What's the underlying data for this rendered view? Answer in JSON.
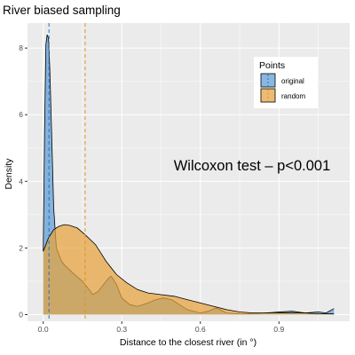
{
  "chart_data": {
    "type": "area",
    "title": "River biased sampling",
    "xlabel": "Distance to the closest river (in °)",
    "ylabel": "Density",
    "xlim": [
      -0.06,
      1.17
    ],
    "ylim": [
      -0.2,
      8.75
    ],
    "x_ticks": [
      0.0,
      0.3,
      0.6,
      0.9
    ],
    "x_tick_labels": [
      "0.0",
      "0.3",
      "0.6",
      "0.9"
    ],
    "y_ticks": [
      0,
      2,
      4,
      6,
      8
    ],
    "y_tick_labels": [
      "0",
      "2",
      "4",
      "6",
      "8"
    ],
    "grid": true,
    "legend": {
      "title": "Points",
      "position": "top-right"
    },
    "annotation": "Wilcoxon test – p<0.001",
    "series": [
      {
        "name": "original",
        "color": "#5b9bd5",
        "fill_opacity": 0.72,
        "mean": 0.022,
        "x": [
          0.0,
          0.005,
          0.01,
          0.015,
          0.02,
          0.025,
          0.03,
          0.04,
          0.05,
          0.06,
          0.07,
          0.08,
          0.1,
          0.12,
          0.15,
          0.17,
          0.19,
          0.21,
          0.23,
          0.25,
          0.26,
          0.28,
          0.3,
          0.33,
          0.36,
          0.4,
          0.43,
          0.46,
          0.49,
          0.52,
          0.55,
          0.6,
          0.63,
          0.66,
          0.7,
          0.75,
          0.8,
          0.85,
          0.9,
          0.95,
          1.0,
          1.05,
          1.08,
          1.11
        ],
        "y": [
          1.9,
          5.5,
          8.1,
          8.4,
          8.3,
          7.4,
          6.0,
          3.2,
          2.0,
          1.8,
          1.6,
          1.5,
          1.35,
          1.2,
          1.0,
          0.8,
          0.6,
          0.7,
          0.9,
          1.1,
          1.15,
          0.9,
          0.5,
          0.3,
          0.25,
          0.35,
          0.45,
          0.5,
          0.45,
          0.3,
          0.15,
          0.05,
          0.1,
          0.2,
          0.05,
          0.02,
          0.02,
          0.05,
          0.08,
          0.1,
          0.05,
          0.08,
          0.05,
          0.18
        ]
      },
      {
        "name": "random",
        "color": "#e6a23c",
        "fill_opacity": 0.72,
        "mean": 0.16,
        "x": [
          0.0,
          0.01,
          0.02,
          0.04,
          0.06,
          0.08,
          0.1,
          0.13,
          0.16,
          0.2,
          0.24,
          0.28,
          0.32,
          0.36,
          0.4,
          0.45,
          0.5,
          0.55,
          0.6,
          0.65,
          0.7,
          0.75,
          0.8,
          0.85,
          0.9,
          0.95,
          1.0,
          1.05,
          1.11
        ],
        "y": [
          1.9,
          2.1,
          2.3,
          2.55,
          2.65,
          2.7,
          2.68,
          2.6,
          2.4,
          2.1,
          1.6,
          1.2,
          0.95,
          0.75,
          0.65,
          0.6,
          0.55,
          0.45,
          0.35,
          0.25,
          0.15,
          0.08,
          0.05,
          0.05,
          0.06,
          0.05,
          0.05,
          0.03,
          0.02
        ]
      }
    ]
  }
}
